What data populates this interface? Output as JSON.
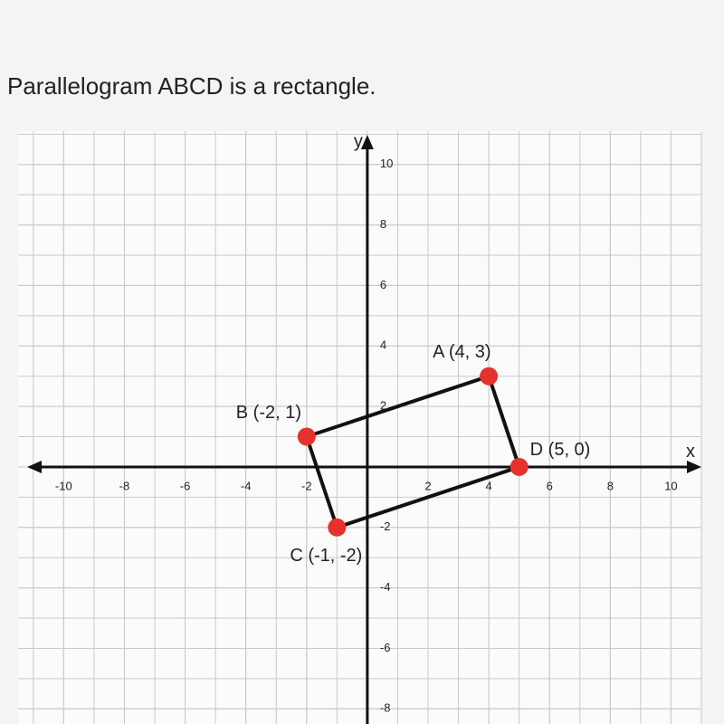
{
  "chart_data": {
    "type": "polygon",
    "title": "Parallelogram ABCD is a rectangle.",
    "x_label": "x",
    "y_label": "y",
    "x": [
      4,
      -2,
      -1,
      5
    ],
    "values": [
      3,
      1,
      -2,
      0
    ],
    "point_labels": [
      "A (4, 3)",
      "B (-2, 1)",
      "C (-1, -2)",
      "D (5, 0)"
    ],
    "color": "#e5322d",
    "edge_color": "#111",
    "xlim": [
      -11.5,
      11
    ],
    "ylim": [
      -8.5,
      11.1
    ],
    "xticks": [
      -10,
      -8,
      -6,
      -4,
      -2,
      2,
      4,
      6,
      8,
      10
    ],
    "yticks": [
      10,
      8,
      6,
      4,
      2,
      -2,
      -4,
      -6,
      -8
    ],
    "grid": true
  }
}
